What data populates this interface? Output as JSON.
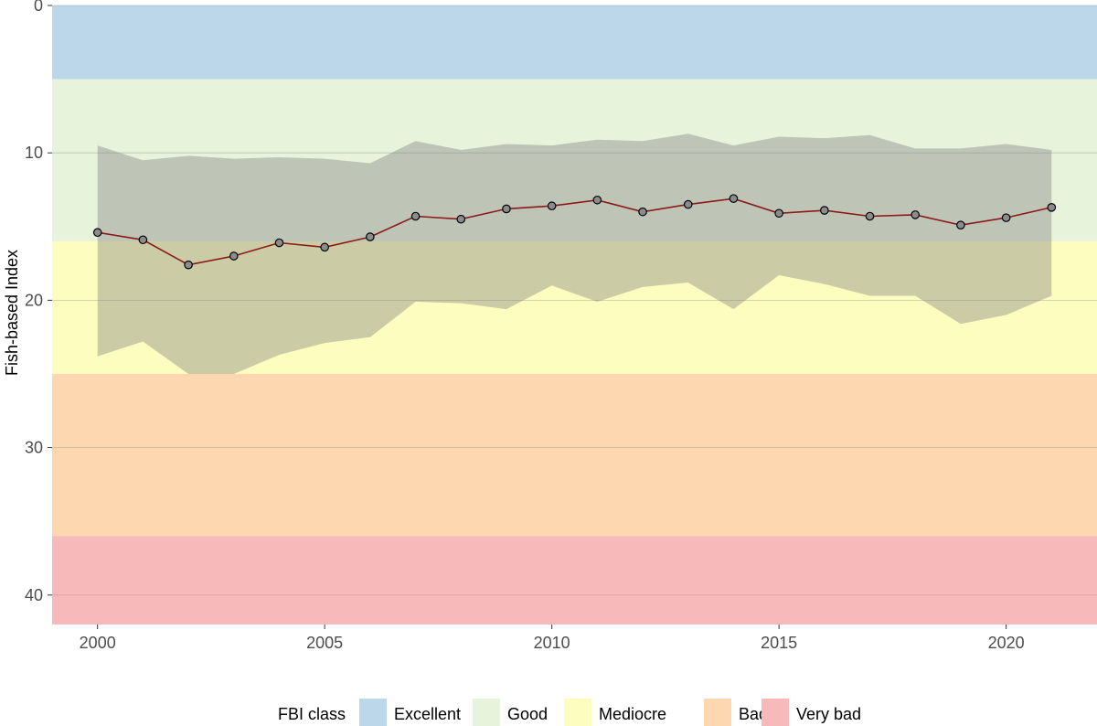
{
  "chart_data": {
    "type": "line",
    "title": "",
    "xlabel": "",
    "ylabel": "Fish-based Index",
    "y_reversed": true,
    "xlim": [
      1999,
      2022
    ],
    "ylim": [
      0,
      42
    ],
    "x_ticks": [
      2000,
      2005,
      2010,
      2015,
      2020
    ],
    "y_ticks": [
      0,
      10,
      20,
      30,
      40
    ],
    "grid": true,
    "legend": {
      "position": "bottom",
      "title": "FBI class",
      "entries": [
        "Excellent",
        "Good",
        "Mediocre",
        "Bad",
        "Very bad"
      ]
    },
    "classes": [
      {
        "name": "Excellent",
        "from": 0,
        "to": 5,
        "color": "#bcd7e9"
      },
      {
        "name": "Good",
        "from": 5,
        "to": 16,
        "color": "#e8f3dc"
      },
      {
        "name": "Mediocre",
        "from": 16,
        "to": 25,
        "color": "#fdfdc0"
      },
      {
        "name": "Bad",
        "from": 25,
        "to": 36,
        "color": "#fdd7b0"
      },
      {
        "name": "Very bad",
        "from": 36,
        "to": 42,
        "color": "#f7b9b9"
      }
    ],
    "x": [
      2000,
      2001,
      2002,
      2003,
      2004,
      2005,
      2006,
      2007,
      2008,
      2009,
      2010,
      2011,
      2012,
      2013,
      2014,
      2015,
      2016,
      2017,
      2018,
      2019,
      2020,
      2021
    ],
    "series": [
      {
        "values": [
          15.4,
          15.9,
          17.6,
          17.0,
          16.1,
          16.4,
          15.7,
          14.3,
          14.5,
          13.8,
          13.6,
          13.2,
          14.0,
          13.5,
          13.1,
          14.1,
          13.9,
          14.3,
          14.2,
          14.9,
          14.4,
          13.7
        ],
        "lower": [
          9.5,
          10.5,
          10.2,
          10.4,
          10.3,
          10.4,
          10.7,
          9.2,
          9.8,
          9.4,
          9.5,
          9.1,
          9.2,
          8.7,
          9.5,
          8.9,
          9.0,
          8.8,
          9.7,
          9.7,
          9.4,
          9.8
        ],
        "upper": [
          23.8,
          22.8,
          25.0,
          25.0,
          23.7,
          22.9,
          22.5,
          20.1,
          20.2,
          20.6,
          19.0,
          20.1,
          19.1,
          18.8,
          20.6,
          18.3,
          18.9,
          19.7,
          19.7,
          21.6,
          21.0,
          19.7
        ]
      }
    ],
    "line_color": "#8b1a1a",
    "point_fill": "#8c8c8c",
    "point_stroke": "#000000",
    "ribbon_color": "#808080"
  }
}
